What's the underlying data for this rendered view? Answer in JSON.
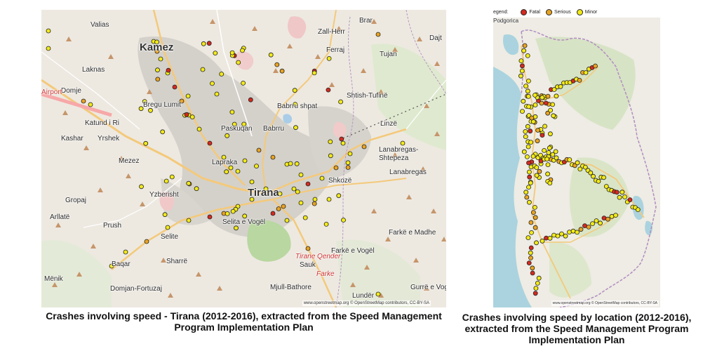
{
  "left_map": {
    "places": [
      "Valias",
      "Kamez",
      "Laknas",
      "Domje",
      "Bregu Lumit",
      "Katund i Ri",
      "Kashar",
      "Yrshek",
      "Mezez",
      "Yzberisht",
      "Gropaj",
      "Lapraka",
      "Tirana",
      "Selita e Vogël",
      "Selite",
      "Prush",
      "Sharrë",
      "Mënik",
      "Baqar",
      "Domjan-Fortuzaj",
      "Paskuqan",
      "Babrru",
      "Babrru shpat",
      "Ferraj",
      "Zall-Herr",
      "Brar",
      "Tujan",
      "Dajt",
      "Shtish-Tufinë",
      "Linzë",
      "Lanabregas-Shtepeza",
      "Lanabregas",
      "Shkozë",
      "Farkë e Madhe",
      "Farkë e Vogël",
      "Sauk",
      "Mjull-Bathore",
      "Lundër",
      "Gurrë e Vogël",
      "Arllatë",
      "Tirane Qender",
      "Farke",
      "Airport"
    ],
    "attribution": "www.openstreetmap.org © OpenStreetMap contributors, CC-BY-SA",
    "caption": "Crashes involving speed - Tirana (2012-2016), extracted from the Speed Management Program Implementation Plan"
  },
  "right_map": {
    "places": [
      "Podgorica"
    ],
    "attribution": "www.openstreetmap.org © OpenStreetMap contributors, CC-BY-SA",
    "caption": "Crashes involving speed by location (2012-2016), extracted from the Speed Management Program Implementation Plan",
    "legend_title": "egend:",
    "legend": [
      {
        "label": "Fatal",
        "color": "#d42a1f"
      },
      {
        "label": "Serious",
        "color": "#e8a321"
      },
      {
        "label": "Minor",
        "color": "#f2ea17"
      }
    ]
  }
}
